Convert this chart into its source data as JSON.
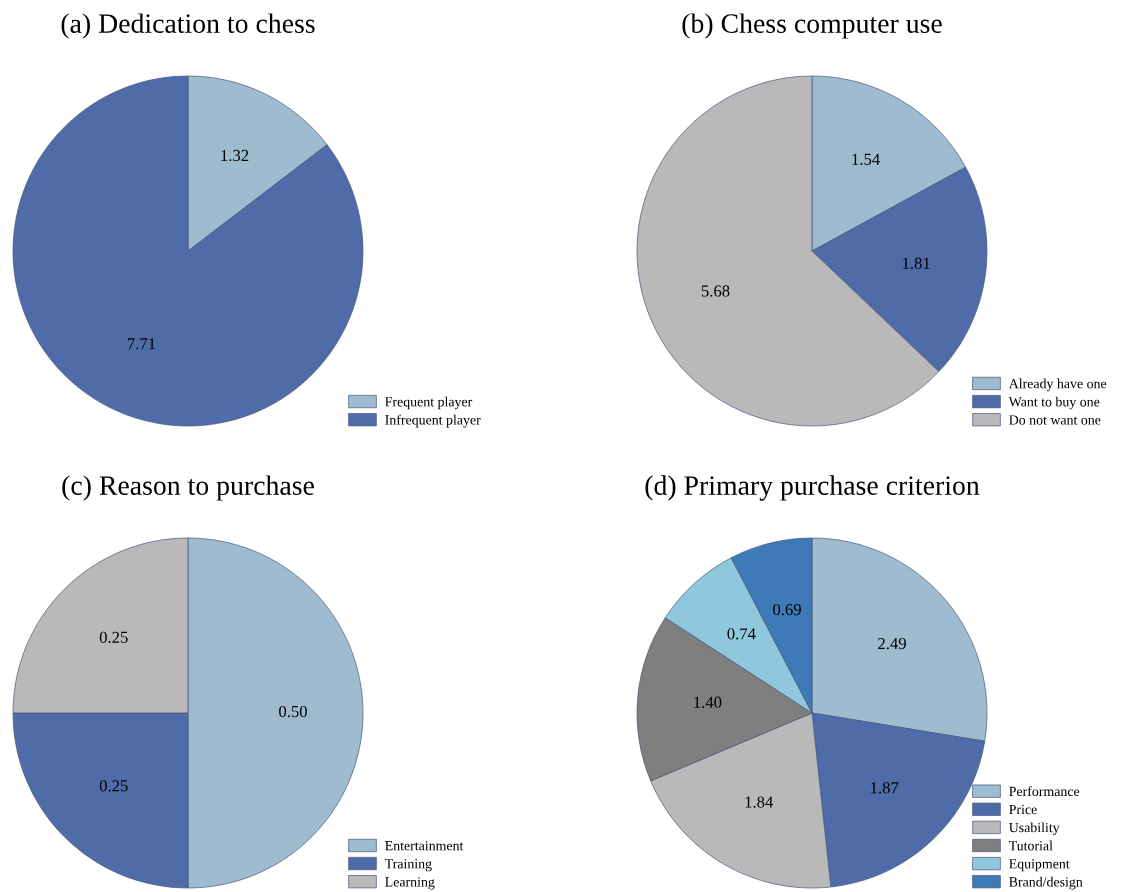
{
  "chart_data": [
    {
      "type": "pie",
      "title": "(a) Dedication to chess",
      "categories": [
        "Frequent player",
        "Infrequent player"
      ],
      "values": [
        1.32,
        7.71
      ],
      "value_labels": [
        "1.32",
        "7.71"
      ],
      "colors": [
        "#9fbbd0",
        "#4f6ca8"
      ],
      "legend": "bottom right"
    },
    {
      "type": "pie",
      "title": "(b) Chess computer use",
      "categories": [
        "Already have one",
        "Want to buy one",
        "Do not want one"
      ],
      "values": [
        1.54,
        1.81,
        5.68
      ],
      "value_labels": [
        "1.54",
        "1.81",
        "5.68"
      ],
      "colors": [
        "#9fbbd0",
        "#4f6ca8",
        "#b9b9b9"
      ],
      "legend": "bottom right"
    },
    {
      "type": "pie",
      "title": "(c) Reason to purchase",
      "categories": [
        "Entertainment",
        "Training",
        "Learning"
      ],
      "values": [
        0.5,
        0.25,
        0.25
      ],
      "value_labels": [
        "0.50",
        "0.25",
        "0.25"
      ],
      "colors": [
        "#9fbbd0",
        "#4f6ca8",
        "#b9b9b9"
      ],
      "legend": "bottom right"
    },
    {
      "type": "pie",
      "title": "(d) Primary purchase criterion",
      "categories": [
        "Performance",
        "Price",
        "Usability",
        "Tutorial",
        "Equipment",
        "Brand/design"
      ],
      "values": [
        2.49,
        1.87,
        1.84,
        1.4,
        0.74,
        0.69
      ],
      "value_labels": [
        "2.49",
        "1.87",
        "1.84",
        "1.40",
        "0.74",
        "0.69"
      ],
      "colors": [
        "#9fbbd0",
        "#4f6ca8",
        "#b9b9b9",
        "#7f7f7f",
        "#8fc8dc",
        "#3f7ab8"
      ],
      "legend": "bottom right"
    }
  ]
}
